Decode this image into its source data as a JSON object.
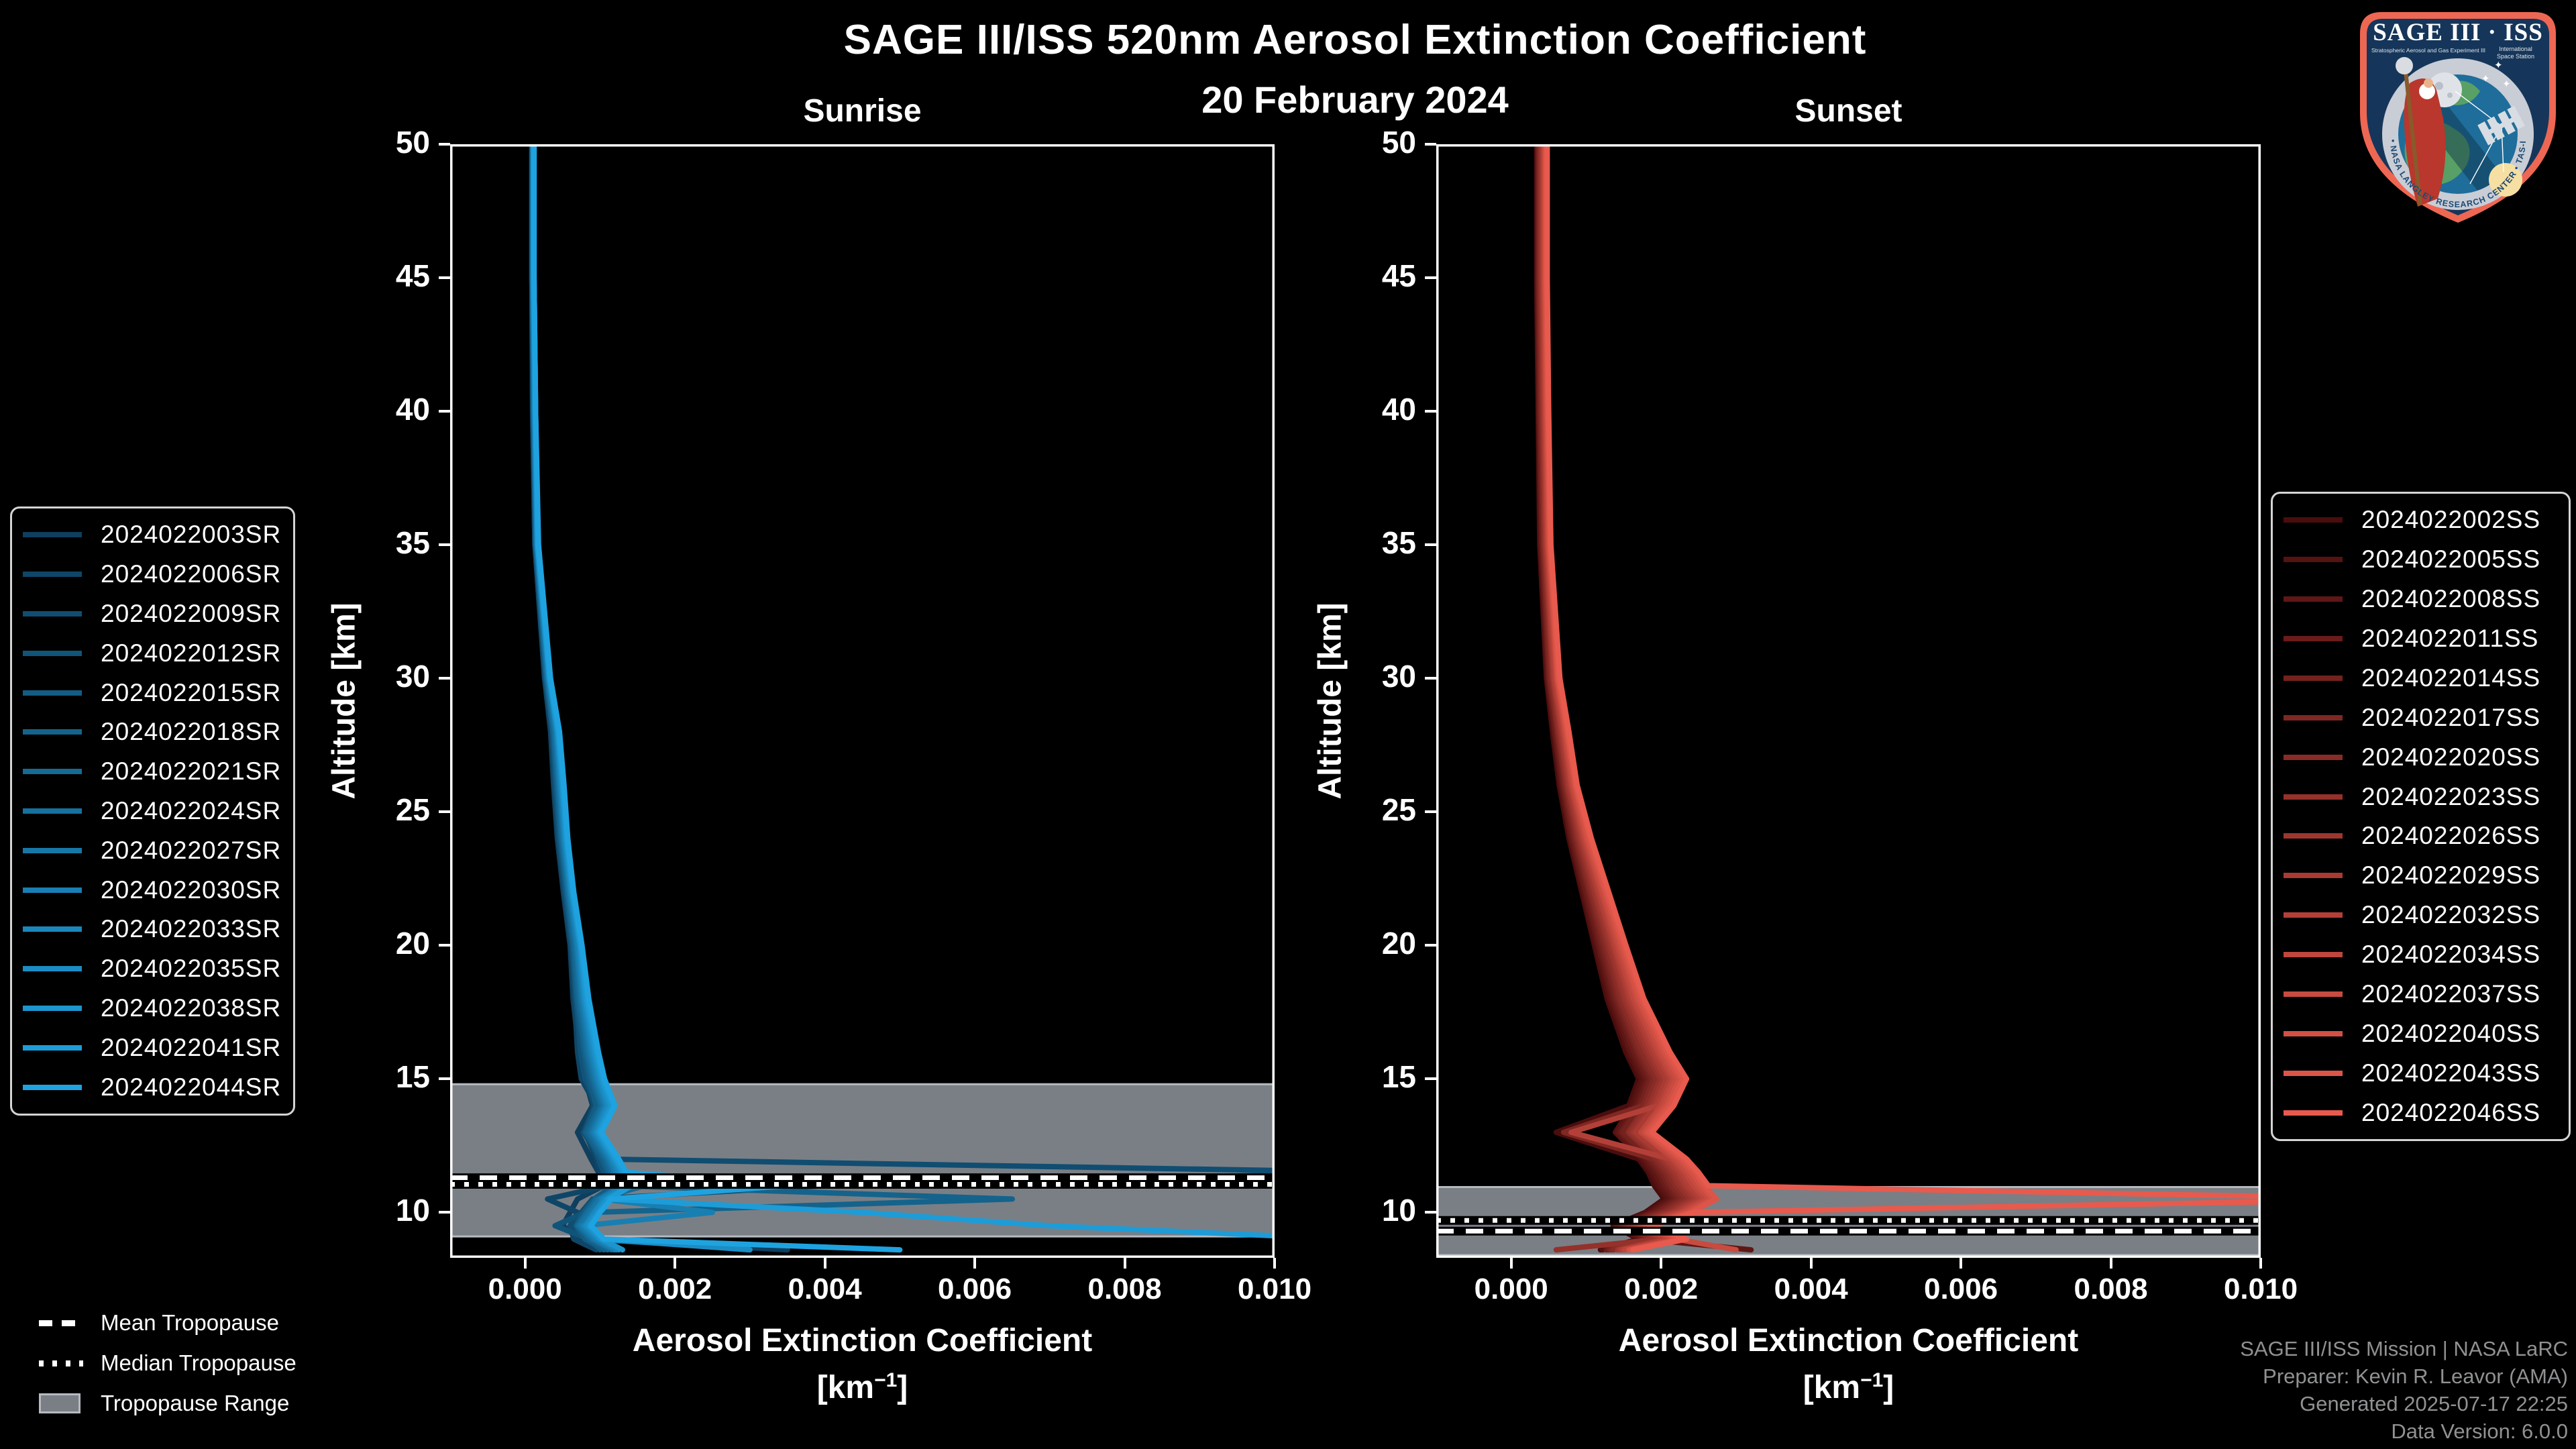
{
  "header": {
    "title": "SAGE III/ISS 520nm Aerosol Extinction Coefficient",
    "subtitle": "20 February 2024"
  },
  "colors": {
    "background": "#000000",
    "axis": "#ffffff",
    "text": "#ffffff",
    "tropopause_band": "#7a7f85",
    "tropopause_band_edge": "#b6bac0",
    "tropopause_line": "#ffffff",
    "tropopause_line_outline": "#000000",
    "credits_text": "#8f9193",
    "legend_border": "#d4d4d4",
    "sunrise_accent": "#1ea3e0",
    "sunset_accent": "#e85a4d"
  },
  "chart_data": [
    {
      "type": "line",
      "panel": "sunrise",
      "title": "Sunrise",
      "xlabel_line1": "Aerosol Extinction Coefficient",
      "xlabel_unit": {
        "pre": "[km",
        "sup": "−1",
        "post": "]"
      },
      "ylabel": "Altitude [km]",
      "xlim": [
        -0.001,
        0.01
      ],
      "ylim": [
        8.3,
        50
      ],
      "xticks": [
        0.0,
        0.002,
        0.004,
        0.006,
        0.008,
        0.01
      ],
      "yticks": [
        10,
        15,
        20,
        25,
        30,
        35,
        40,
        45,
        50
      ],
      "grid": false,
      "legend_position": "outside-left",
      "tropopause": {
        "mean_km": 11.3,
        "median_km": 11.05,
        "range_km": [
          9.1,
          14.8
        ]
      },
      "value_scale": 1e-05,
      "altitudes_km": [
        50,
        45,
        40,
        35,
        30,
        28,
        26,
        24,
        22,
        20,
        18,
        16,
        15,
        14,
        13,
        12,
        11.5,
        11,
        10.5,
        10,
        9.5,
        9,
        8.6
      ],
      "series": [
        {
          "name": "2024022003SR",
          "color": "#0e3f5e",
          "values": [
            9,
            9,
            10,
            13,
            26,
            34,
            38,
            43,
            51,
            60,
            64,
            72,
            80,
            90,
            70,
            88,
            98,
            105,
            70,
            60,
            50,
            75,
            350
          ]
        },
        {
          "name": "2024022006SR",
          "color": "#0f4667",
          "values": [
            9,
            9,
            10,
            13,
            26,
            35,
            39,
            44,
            52,
            61,
            66,
            70,
            75,
            95,
            80,
            95,
            100,
            110,
            30,
            70,
            60,
            65,
            95
          ]
        },
        {
          "name": "2024022009SR",
          "color": "#104d71",
          "values": [
            9,
            9,
            11,
            14,
            27,
            36,
            40,
            45,
            53,
            62,
            67,
            76,
            82,
            92,
            78,
            100,
            1150,
            400,
            90,
            75,
            60,
            80,
            110
          ]
        },
        {
          "name": "2024022012SR",
          "color": "#11547a",
          "values": [
            10,
            10,
            11,
            14,
            28,
            37,
            41,
            46,
            54,
            63,
            68,
            74,
            80,
            98,
            85,
            98,
            105,
            115,
            95,
            80,
            40,
            85,
            100
          ]
        },
        {
          "name": "2024022015SR",
          "color": "#135c83",
          "values": [
            10,
            10,
            11,
            14,
            28,
            37,
            42,
            47,
            55,
            64,
            69,
            78,
            85,
            95,
            80,
            102,
            110,
            118,
            92,
            78,
            68,
            80,
            105
          ]
        },
        {
          "name": "2024022018SR",
          "color": "#14638c",
          "values": [
            10,
            10,
            11,
            15,
            29,
            38,
            43,
            48,
            56,
            65,
            70,
            80,
            88,
            100,
            82,
            105,
            112,
            120,
            650,
            90,
            70,
            85,
            110
          ]
        },
        {
          "name": "2024022021SR",
          "color": "#156a96",
          "values": [
            10,
            10,
            12,
            15,
            29,
            39,
            44,
            49,
            57,
            66,
            72,
            82,
            90,
            102,
            85,
            108,
            115,
            160,
            95,
            82,
            70,
            88,
            115
          ]
        },
        {
          "name": "2024022024SR",
          "color": "#16719f",
          "values": [
            10,
            10,
            12,
            15,
            30,
            40,
            45,
            50,
            58,
            68,
            74,
            84,
            92,
            104,
            88,
            110,
            118,
            128,
            98,
            85,
            72,
            90,
            118
          ]
        },
        {
          "name": "2024022027SR",
          "color": "#1778a8",
          "values": [
            11,
            11,
            12,
            16,
            31,
            41,
            46,
            51,
            59,
            69,
            75,
            86,
            94,
            106,
            90,
            112,
            120,
            130,
            100,
            88,
            75,
            92,
            120
          ]
        },
        {
          "name": "2024022030SR",
          "color": "#187fb2",
          "values": [
            11,
            11,
            13,
            16,
            31,
            42,
            47,
            52,
            60,
            70,
            77,
            88,
            96,
            108,
            92,
            114,
            122,
            132,
            102,
            250,
            77,
            95,
            122
          ]
        },
        {
          "name": "2024022033SR",
          "color": "#1a86bb",
          "values": [
            11,
            11,
            13,
            16,
            32,
            43,
            48,
            53,
            61,
            72,
            78,
            90,
            98,
            110,
            94,
            116,
            125,
            135,
            105,
            92,
            80,
            98,
            125
          ]
        },
        {
          "name": "2024022035SR",
          "color": "#1b8dc4",
          "values": [
            11,
            11,
            13,
            17,
            32,
            43,
            49,
            54,
            62,
            73,
            80,
            92,
            100,
            112,
            96,
            118,
            128,
            138,
            108,
            95,
            82,
            100,
            300
          ]
        },
        {
          "name": "2024022038SR",
          "color": "#1c95cd",
          "values": [
            12,
            12,
            14,
            17,
            33,
            44,
            50,
            55,
            63,
            74,
            81,
            94,
            102,
            115,
            98,
            120,
            130,
            140,
            110,
            98,
            85,
            102,
            130
          ]
        },
        {
          "name": "2024022041SR",
          "color": "#1d9cd7",
          "values": [
            12,
            12,
            14,
            17,
            33,
            45,
            51,
            56,
            64,
            75,
            83,
            96,
            104,
            118,
            100,
            122,
            132,
            142,
            112,
            450,
            700,
            1100,
            1200
          ]
        },
        {
          "name": "2024022044SR",
          "color": "#1ea3e0",
          "values": [
            12,
            12,
            14,
            18,
            34,
            46,
            52,
            57,
            65,
            76,
            85,
            98,
            106,
            120,
            102,
            125,
            135,
            350,
            115,
            100,
            88,
            105,
            500
          ]
        }
      ]
    },
    {
      "type": "line",
      "panel": "sunset",
      "title": "Sunset",
      "xlabel_line1": "Aerosol Extinction Coefficient",
      "xlabel_unit": {
        "pre": "[km",
        "sup": "−1",
        "post": "]"
      },
      "ylabel": "Altitude [km]",
      "xlim": [
        -0.001,
        0.01
      ],
      "ylim": [
        8.3,
        50
      ],
      "xticks": [
        0.0,
        0.002,
        0.004,
        0.006,
        0.008,
        0.01
      ],
      "yticks": [
        10,
        15,
        20,
        25,
        30,
        35,
        40,
        45,
        50
      ],
      "grid": false,
      "legend_position": "outside-right",
      "tropopause": {
        "mean_km": 9.3,
        "median_km": 9.7,
        "range_km": [
          8.4,
          10.95
        ]
      },
      "value_scale": 1e-05,
      "altitudes_km": [
        50,
        45,
        40,
        35,
        30,
        28,
        26,
        24,
        22,
        20,
        18,
        16,
        15,
        14,
        13,
        12,
        11.5,
        11,
        10.5,
        10,
        9.5,
        9,
        8.6
      ],
      "series": [
        {
          "name": "2024022002SS",
          "color": "#4a0d0d",
          "values": [
            34,
            34,
            36,
            38,
            47,
            55,
            64,
            77,
            94,
            111,
            128,
            153,
            170,
            157,
            60,
            170,
            183,
            191,
            204,
            179,
            136,
            170,
            119
          ]
        },
        {
          "name": "2024022005SS",
          "color": "#551211",
          "values": [
            35,
            35,
            37,
            39,
            48,
            57,
            66,
            79,
            96,
            113,
            131,
            157,
            174,
            161,
            139,
            174,
            187,
            196,
            209,
            183,
            139,
            174,
            122
          ]
        },
        {
          "name": "2024022008SS",
          "color": "#5f1716",
          "values": [
            36,
            36,
            37,
            40,
            49,
            58,
            67,
            80,
            98,
            116,
            134,
            160,
            178,
            165,
            142,
            178,
            191,
            200,
            214,
            187,
            142,
            178,
            320
          ]
        },
        {
          "name": "2024022011SS",
          "color": "#6a1c1a",
          "values": [
            36,
            36,
            38,
            41,
            50,
            59,
            69,
            82,
            100,
            118,
            137,
            164,
            182,
            169,
            146,
            182,
            196,
            205,
            219,
            191,
            146,
            182,
            127
          ]
        },
        {
          "name": "2024022014SS",
          "color": "#74221e",
          "values": [
            37,
            37,
            39,
            42,
            51,
            61,
            70,
            84,
            103,
            121,
            140,
            168,
            186,
            172,
            149,
            186,
            200,
            210,
            223,
            195,
            149,
            186,
            130
          ]
        },
        {
          "name": "2024022017SS",
          "color": "#7f2722",
          "values": [
            38,
            38,
            40,
            43,
            52,
            62,
            72,
            86,
            105,
            124,
            143,
            171,
            190,
            176,
            70,
            190,
            205,
            214,
            228,
            200,
            152,
            190,
            133
          ]
        },
        {
          "name": "2024022020SS",
          "color": "#892c27",
          "values": [
            39,
            39,
            41,
            44,
            54,
            63,
            73,
            88,
            107,
            127,
            146,
            175,
            194,
            180,
            156,
            194,
            209,
            219,
            233,
            204,
            156,
            194,
            136
          ]
        },
        {
          "name": "2024022023SS",
          "color": "#94312b",
          "values": [
            40,
            40,
            42,
            45,
            55,
            65,
            75,
            90,
            110,
            130,
            150,
            180,
            199,
            184,
            159,
            199,
            214,
            224,
            239,
            209,
            159,
            199,
            60
          ]
        },
        {
          "name": "2024022026SS",
          "color": "#9e362f",
          "values": [
            41,
            41,
            43,
            46,
            56,
            66,
            76,
            92,
            112,
            133,
            153,
            184,
            203,
            188,
            163,
            203,
            218,
            229,
            244,
            214,
            163,
            203,
            142
          ]
        },
        {
          "name": "2024022029SS",
          "color": "#a93b33",
          "values": [
            42,
            42,
            44,
            47,
            57,
            68,
            78,
            94,
            115,
            136,
            157,
            188,
            207,
            192,
            166,
            207,
            223,
            233,
            249,
            218,
            166,
            207,
            145
          ]
        },
        {
          "name": "2024022032SS",
          "color": "#b34038",
          "values": [
            43,
            43,
            45,
            48,
            58,
            69,
            80,
            96,
            117,
            138,
            160,
            192,
            212,
            196,
            80,
            212,
            227,
            238,
            254,
            222,
            170,
            212,
            148
          ]
        },
        {
          "name": "2024022034SS",
          "color": "#be463c",
          "values": [
            44,
            44,
            46,
            49,
            60,
            71,
            81,
            98,
            120,
            141,
            163,
            196,
            216,
            200,
            173,
            216,
            232,
            243,
            259,
            227,
            173,
            216,
            151
          ]
        },
        {
          "name": "2024022037SS",
          "color": "#c84b40",
          "values": [
            45,
            45,
            47,
            50,
            61,
            72,
            83,
            100,
            122,
            144,
            167,
            200,
            220,
            204,
            177,
            220,
            236,
            248,
            264,
            231,
            177,
            220,
            300
          ]
        },
        {
          "name": "2024022040SS",
          "color": "#d35044",
          "values": [
            46,
            46,
            48,
            51,
            62,
            74,
            85,
            102,
            125,
            147,
            170,
            204,
            225,
            208,
            180,
            225,
            241,
            253,
            269,
            236,
            180,
            225,
            157
          ]
        },
        {
          "name": "2024022043SS",
          "color": "#dd5549",
          "values": [
            47,
            47,
            49,
            52,
            63,
            75,
            86,
            105,
            127,
            150,
            174,
            208,
            229,
            212,
            184,
            229,
            246,
            258,
            274,
            240,
            184,
            229,
            160
          ]
        },
        {
          "name": "2024022046SS",
          "color": "#e85a4d",
          "values": [
            48,
            48,
            50,
            53,
            65,
            77,
            88,
            107,
            130,
            153,
            177,
            212,
            234,
            217,
            188,
            234,
            250,
            263,
            1200,
            245,
            188,
            234,
            163
          ]
        }
      ]
    }
  ],
  "tropopause_legend": {
    "items": [
      {
        "label": "Mean Tropopause",
        "swatch": "dashed-line"
      },
      {
        "label": "Median Tropopause",
        "swatch": "dotted-line"
      },
      {
        "label": "Tropopause Range",
        "swatch": "filled-band"
      }
    ]
  },
  "credits": {
    "lines": [
      "SAGE III/ISS Mission | NASA LaRC",
      "Preparer: Kevin R. Leavor (AMA)",
      "Generated 2025-07-17 22:25",
      "Data Version: 6.0.0"
    ]
  },
  "logo": {
    "title": "SAGE III · ISS",
    "subtitle_left": "Stratospheric Aerosol and Gas Experiment III",
    "subtitle_right_1": "International",
    "subtitle_right_2": "Space Station",
    "ring_text": "BALL • NASA LANGLEY RESEARCH CENTER • TAS-I • ESA"
  }
}
